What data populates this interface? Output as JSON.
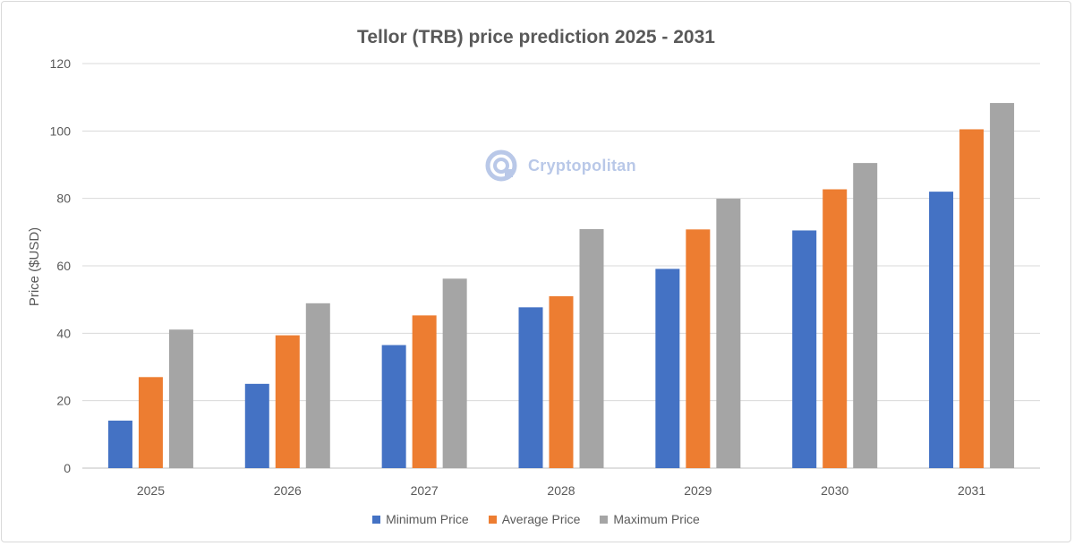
{
  "chart_data": {
    "type": "bar",
    "title": "Tellor (TRB) price prediction 2025 - 2031",
    "xlabel": "",
    "ylabel": "Price ($USD)",
    "ylim": [
      0,
      120
    ],
    "yticks": [
      0,
      20,
      40,
      60,
      80,
      100,
      120
    ],
    "categories": [
      "2025",
      "2026",
      "2027",
      "2028",
      "2029",
      "2030",
      "2031"
    ],
    "series": [
      {
        "name": "Minimum Price",
        "color": "#4472c4",
        "values": [
          14.1,
          25.0,
          36.5,
          47.7,
          59.1,
          70.5,
          82.0
        ]
      },
      {
        "name": "Average Price",
        "color": "#ed7d31",
        "values": [
          27.0,
          39.4,
          45.3,
          51.0,
          70.8,
          82.7,
          100.5
        ]
      },
      {
        "name": "Maximum Price",
        "color": "#a5a5a5",
        "values": [
          41.1,
          48.9,
          56.2,
          70.9,
          79.9,
          90.5,
          108.3
        ]
      }
    ],
    "grid": true,
    "legend_position": "bottom"
  },
  "watermark": {
    "text": "Cryptopolitan",
    "icon": "cryptopolitan-logo-icon"
  }
}
